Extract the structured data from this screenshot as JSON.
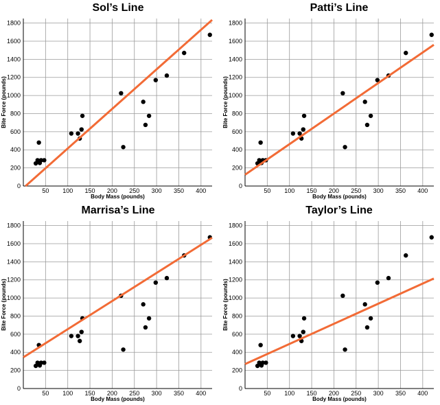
{
  "style": {
    "line_color": "#f26b36",
    "point_color": "#000000",
    "grid_color": "#9a9a9a"
  },
  "chart_data": [
    {
      "type": "scatter",
      "title": "Sol’s Line",
      "xlabel": "Body Mass (pounds)",
      "ylabel": "Bite Force (pounds)",
      "xlim": [
        0,
        425
      ],
      "ylim": [
        0,
        1850
      ],
      "xticks": [
        0,
        50,
        100,
        150,
        200,
        250,
        300,
        350,
        400
      ],
      "yticks": [
        0,
        200,
        400,
        600,
        800,
        1000,
        1200,
        1400,
        1600,
        1800
      ],
      "grid": true,
      "points": [
        [
          28,
          250
        ],
        [
          32,
          285
        ],
        [
          35,
          480
        ],
        [
          37,
          255
        ],
        [
          40,
          285
        ],
        [
          47,
          285
        ],
        [
          108,
          580
        ],
        [
          123,
          580
        ],
        [
          127,
          525
        ],
        [
          131,
          625
        ],
        [
          133,
          775
        ],
        [
          220,
          1025
        ],
        [
          225,
          430
        ],
        [
          270,
          930
        ],
        [
          275,
          675
        ],
        [
          283,
          775
        ],
        [
          298,
          1170
        ],
        [
          323,
          1220
        ],
        [
          362,
          1470
        ],
        [
          420,
          1670
        ]
      ],
      "line": [
        [
          5,
          0
        ],
        [
          425,
          1835
        ]
      ]
    },
    {
      "type": "scatter",
      "title": "Patti’s Line",
      "xlabel": "Body Mass (pounds)",
      "ylabel": "Bite Force (pounds)",
      "xlim": [
        0,
        425
      ],
      "ylim": [
        0,
        1850
      ],
      "xticks": [
        0,
        50,
        100,
        150,
        200,
        250,
        300,
        350,
        400
      ],
      "yticks": [
        0,
        200,
        400,
        600,
        800,
        1000,
        1200,
        1400,
        1600,
        1800
      ],
      "grid": true,
      "points": [
        [
          28,
          250
        ],
        [
          32,
          285
        ],
        [
          35,
          480
        ],
        [
          37,
          255
        ],
        [
          40,
          285
        ],
        [
          47,
          285
        ],
        [
          108,
          580
        ],
        [
          123,
          580
        ],
        [
          127,
          525
        ],
        [
          131,
          625
        ],
        [
          133,
          775
        ],
        [
          220,
          1025
        ],
        [
          225,
          430
        ],
        [
          270,
          930
        ],
        [
          275,
          675
        ],
        [
          283,
          775
        ],
        [
          298,
          1170
        ],
        [
          323,
          1220
        ],
        [
          362,
          1470
        ],
        [
          420,
          1670
        ]
      ],
      "line": [
        [
          0,
          125
        ],
        [
          425,
          1560
        ]
      ]
    },
    {
      "type": "scatter",
      "title": "Marrisa’s Line",
      "xlabel": "Body Mass (pounds)",
      "ylabel": "Bite Force (pounds)",
      "xlim": [
        0,
        425
      ],
      "ylim": [
        0,
        1850
      ],
      "xticks": [
        0,
        50,
        100,
        150,
        200,
        250,
        300,
        350,
        400
      ],
      "yticks": [
        0,
        200,
        400,
        600,
        800,
        1000,
        1200,
        1400,
        1600,
        1800
      ],
      "grid": true,
      "points": [
        [
          28,
          250
        ],
        [
          32,
          285
        ],
        [
          35,
          480
        ],
        [
          37,
          255
        ],
        [
          40,
          285
        ],
        [
          47,
          285
        ],
        [
          108,
          580
        ],
        [
          123,
          580
        ],
        [
          127,
          525
        ],
        [
          131,
          625
        ],
        [
          133,
          775
        ],
        [
          220,
          1025
        ],
        [
          225,
          430
        ],
        [
          270,
          930
        ],
        [
          275,
          675
        ],
        [
          283,
          775
        ],
        [
          298,
          1170
        ],
        [
          323,
          1220
        ],
        [
          362,
          1470
        ],
        [
          420,
          1670
        ]
      ],
      "line": [
        [
          0,
          345
        ],
        [
          425,
          1665
        ]
      ]
    },
    {
      "type": "scatter",
      "title": "Taylor’s Line",
      "xlabel": "Body Mass (pounds)",
      "ylabel": "Bite Force (pounds)",
      "xlim": [
        0,
        425
      ],
      "ylim": [
        0,
        1850
      ],
      "xticks": [
        0,
        50,
        100,
        150,
        200,
        250,
        300,
        350,
        400
      ],
      "yticks": [
        0,
        200,
        400,
        600,
        800,
        1000,
        1200,
        1400,
        1600,
        1800
      ],
      "grid": true,
      "points": [
        [
          28,
          250
        ],
        [
          32,
          285
        ],
        [
          35,
          480
        ],
        [
          37,
          255
        ],
        [
          40,
          285
        ],
        [
          47,
          285
        ],
        [
          108,
          580
        ],
        [
          123,
          580
        ],
        [
          127,
          525
        ],
        [
          131,
          625
        ],
        [
          133,
          775
        ],
        [
          220,
          1025
        ],
        [
          225,
          430
        ],
        [
          270,
          930
        ],
        [
          275,
          675
        ],
        [
          283,
          775
        ],
        [
          298,
          1170
        ],
        [
          323,
          1220
        ],
        [
          362,
          1470
        ],
        [
          420,
          1670
        ]
      ],
      "line": [
        [
          0,
          270
        ],
        [
          425,
          1215
        ]
      ]
    }
  ]
}
